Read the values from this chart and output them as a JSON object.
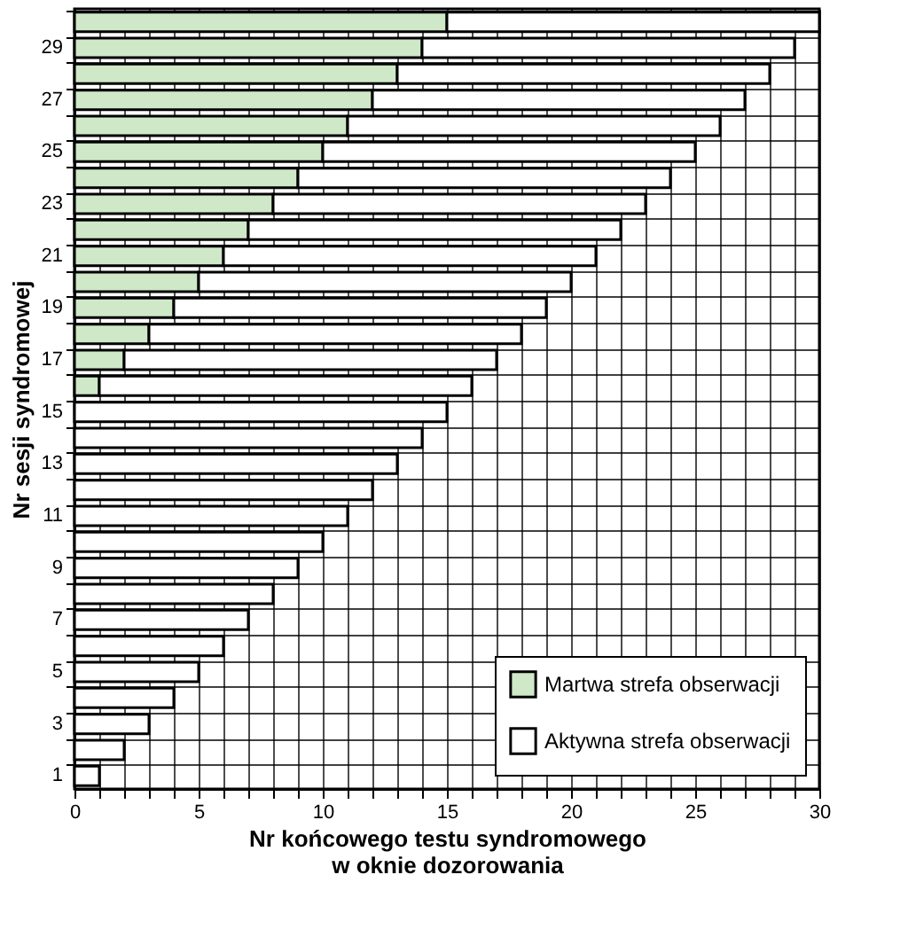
{
  "chart_data": {
    "type": "bar",
    "orientation": "horizontal",
    "stacked": true,
    "xlabel": "Nr końcowego testu syndromowego\nw oknie dozorowania",
    "ylabel": "Nr sesji syndromowej",
    "categories": [
      null,
      "29",
      null,
      "27",
      null,
      "25",
      null,
      "23",
      null,
      "21",
      null,
      "19",
      null,
      "17",
      null,
      "15",
      null,
      "13",
      null,
      "11",
      null,
      "9",
      null,
      "7",
      null,
      "5",
      null,
      "3",
      null,
      "1"
    ],
    "series": [
      {
        "name": "Martwa strefa obserwacji",
        "color": "#cfe8c8",
        "values": [
          15,
          14,
          13,
          12,
          11,
          10,
          9,
          8,
          7,
          6,
          5,
          4,
          3,
          2,
          1,
          null,
          null,
          null,
          null,
          null,
          null,
          null,
          null,
          null,
          null,
          null,
          null,
          null,
          null,
          null
        ]
      },
      {
        "name": "Aktywna strefa obserwacji",
        "color": "#ffffff",
        "values": [
          15,
          15,
          15,
          15,
          15,
          15,
          15,
          15,
          15,
          15,
          15,
          15,
          15,
          15,
          15,
          15,
          14,
          13,
          12,
          11,
          10,
          9,
          8,
          7,
          6,
          5,
          4,
          3,
          2,
          1
        ]
      }
    ],
    "xlim": [
      0,
      30
    ],
    "xticks": [
      0,
      {
        "value": 1,
        "label": null
      },
      {
        "value": 2,
        "label": null
      },
      {
        "value": 3,
        "label": null
      },
      {
        "value": 4,
        "label": null
      },
      5,
      {
        "value": 6,
        "label": null
      },
      {
        "value": 7,
        "label": null
      },
      {
        "value": 8,
        "label": null
      },
      {
        "value": 9,
        "label": null
      },
      10,
      {
        "value": 11,
        "label": null
      },
      {
        "value": 12,
        "label": null
      },
      {
        "value": 13,
        "label": null
      },
      {
        "value": 14,
        "label": null
      },
      15,
      {
        "value": 16,
        "label": null
      },
      {
        "value": 17,
        "label": null
      },
      {
        "value": 18,
        "label": null
      },
      {
        "value": 19,
        "label": null
      },
      20,
      {
        "value": 21,
        "label": null
      },
      {
        "value": 22,
        "label": null
      },
      {
        "value": 23,
        "label": null
      },
      {
        "value": 24,
        "label": null
      },
      25,
      {
        "value": 26,
        "label": null
      },
      {
        "value": 27,
        "label": null
      },
      {
        "value": 28,
        "label": null
      },
      {
        "value": 29,
        "label": null
      },
      30
    ],
    "grid": true,
    "legend": "bottom right"
  }
}
